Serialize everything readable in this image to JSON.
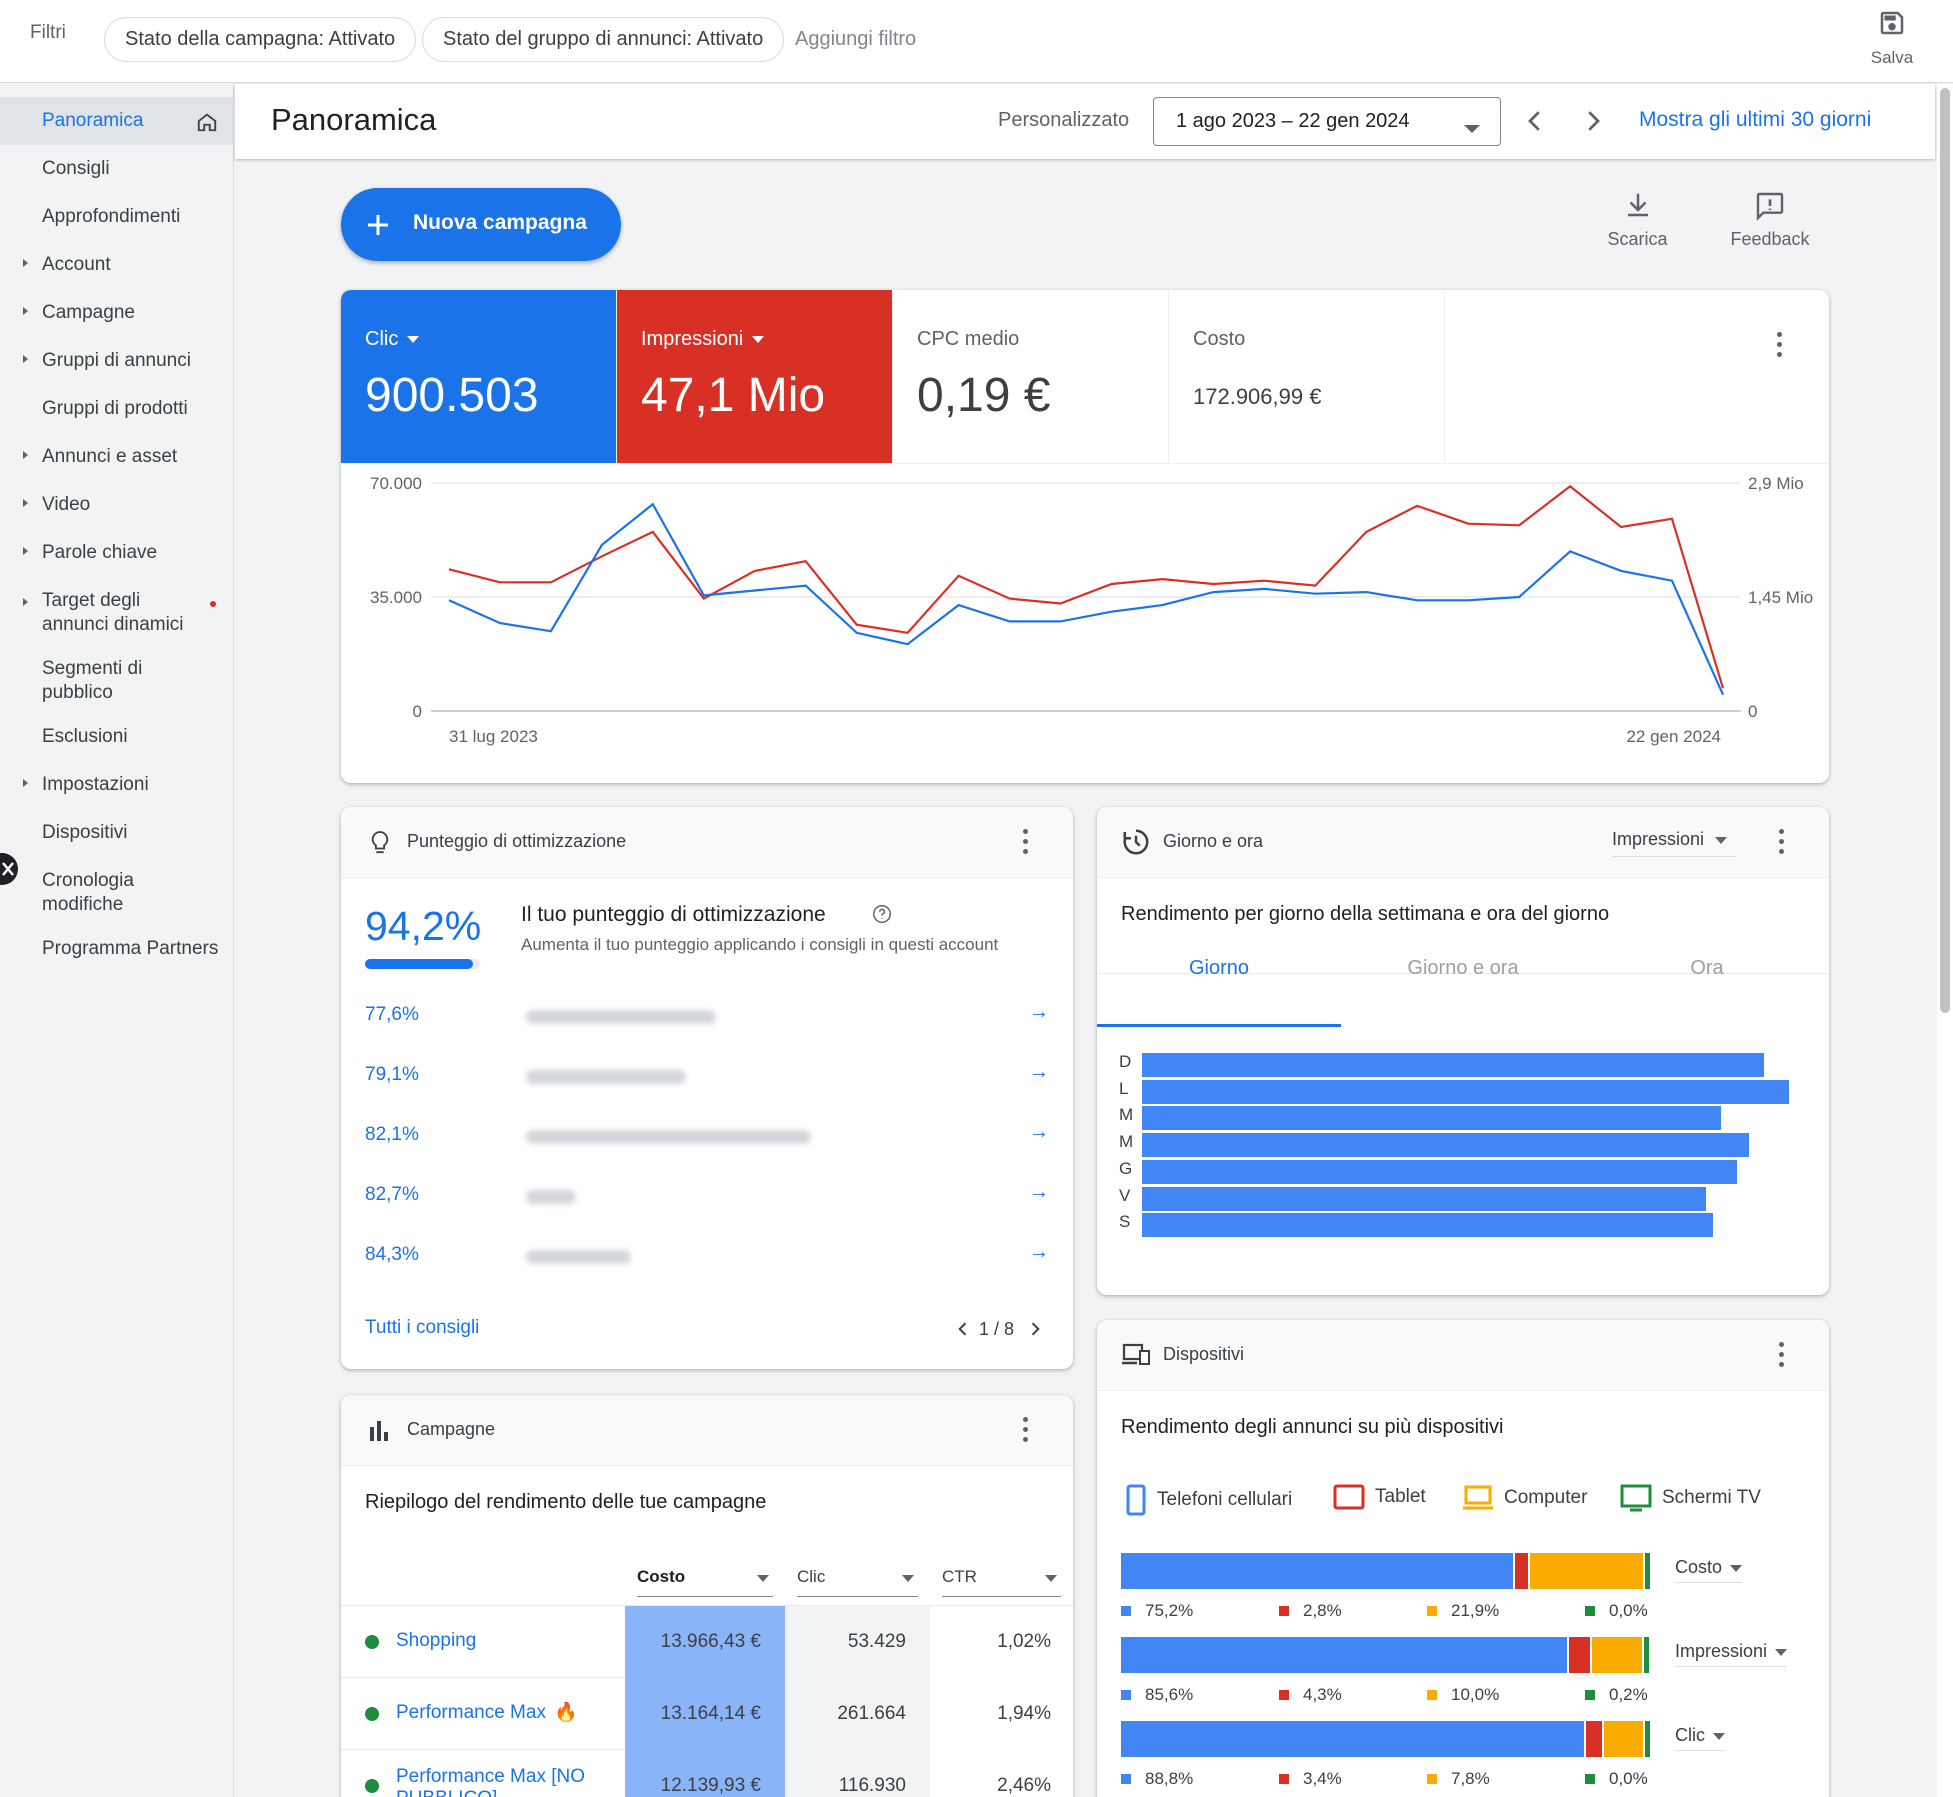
{
  "filters": {
    "label": "Filtri",
    "chips": [
      "Stato della campagna: Attivato",
      "Stato del gruppo di annunci: Attivato"
    ],
    "add": "Aggiungi filtro",
    "save": "Salva"
  },
  "sidebar": {
    "items": [
      {
        "label": "Panoramica",
        "caret": false,
        "active": true
      },
      {
        "label": "Consigli",
        "caret": false
      },
      {
        "label": "Approfondimenti",
        "caret": false
      },
      {
        "label": "Account",
        "caret": true
      },
      {
        "label": "Campagne",
        "caret": true
      },
      {
        "label": "Gruppi di annunci",
        "caret": true
      },
      {
        "label": "Gruppi di prodotti",
        "caret": false
      },
      {
        "label": "Annunci e asset",
        "caret": true
      },
      {
        "label": "Video",
        "caret": true
      },
      {
        "label": "Parole chiave",
        "caret": true
      },
      {
        "label": "Target degli annunci dinamici",
        "caret": true,
        "dot": true
      },
      {
        "label": "Segmenti di pubblico",
        "caret": false
      },
      {
        "label": "Esclusioni",
        "caret": false
      },
      {
        "label": "Impostazioni",
        "caret": true
      },
      {
        "label": "Dispositivi",
        "caret": false
      },
      {
        "label": "Cronologia modifiche",
        "caret": false
      },
      {
        "label": "Programma Partners",
        "caret": false
      }
    ]
  },
  "header": {
    "title": "Panoramica",
    "range_label": "Personalizzato",
    "date_range": "1 ago 2023 – 22 gen 2024",
    "last30": "Mostra gli ultimi 30 giorni"
  },
  "actions": {
    "new_campaign": "Nuova campagna",
    "download": "Scarica",
    "feedback": "Feedback"
  },
  "metrics": [
    {
      "label": "Clic",
      "value": "900.503",
      "color": "#1a73e8",
      "dropdown": true
    },
    {
      "label": "Impressioni",
      "value": "47,1 Mio",
      "color": "#d93025",
      "dropdown": true
    },
    {
      "label": "CPC medio",
      "value": "0,19 €"
    },
    {
      "label": "Costo",
      "value": "172.906,99 €"
    }
  ],
  "chart_data": {
    "type": "line",
    "x_start": "31 lug 2023",
    "x_end": "22 gen 2024",
    "y_left_ticks": [
      "70.000",
      "35.000",
      "0"
    ],
    "y_right_ticks": [
      "2,9 Mio",
      "1,45 Mio",
      "0"
    ],
    "ylim_left": [
      0,
      70000
    ],
    "ylim_right": [
      0,
      2900000
    ],
    "series": [
      {
        "name": "Clic",
        "color": "#1a73e8",
        "axis": "left",
        "values": [
          34000,
          27000,
          24500,
          51000,
          63500,
          35500,
          37000,
          38500,
          24000,
          20500,
          32500,
          27500,
          27500,
          30500,
          32500,
          36500,
          37500,
          36000,
          36500,
          34000,
          34000,
          35000,
          49000,
          43000,
          40000,
          5000
        ]
      },
      {
        "name": "Impressioni",
        "color": "#d93025",
        "axis": "left",
        "values": [
          43500,
          39500,
          39500,
          47500,
          55000,
          34500,
          43000,
          46000,
          26500,
          24000,
          41500,
          34500,
          33000,
          39000,
          40500,
          39000,
          40000,
          38500,
          55000,
          63000,
          57500,
          57000,
          69000,
          56500,
          59000,
          7000
        ]
      }
    ]
  },
  "optimization": {
    "title": "Punteggio di ottimizzazione",
    "score": "94,2%",
    "score_fraction": 0.942,
    "heading": "Il tuo punteggio di ottimizzazione",
    "desc": "Aumenta il tuo punteggio applicando i consigli in questi account",
    "rows": [
      "77,6%",
      "79,1%",
      "82,1%",
      "82,7%",
      "84,3%"
    ],
    "all_link": "Tutti i consigli",
    "page": "1 / 8"
  },
  "dayhour": {
    "title": "Giorno e ora",
    "metric": "Impressioni",
    "subtitle": "Rendimento per giorno della settimana e ora del giorno",
    "tabs": [
      "Giorno",
      "Giorno e ora",
      "Ora"
    ],
    "days": [
      "D",
      "L",
      "M",
      "M",
      "G",
      "V",
      "S"
    ],
    "day_values": [
      0.962,
      1.0,
      0.895,
      0.938,
      0.92,
      0.872,
      0.882
    ]
  },
  "campaigns": {
    "title": "Campagne",
    "subtitle": "Riepilogo del rendimento delle tue campagne",
    "columns": [
      "Costo",
      "Clic",
      "CTR"
    ],
    "rows": [
      {
        "name": "Shopping",
        "cost": "13.966,43 €",
        "clicks": "53.429",
        "ctr": "1,02%"
      },
      {
        "name": "Performance Max",
        "cost": "13.164,14 €",
        "clicks": "261.664",
        "ctr": "1,94%",
        "fire": true
      },
      {
        "name": "Performance Max [NO PUBBLICO]",
        "cost": "12.139,93 €",
        "clicks": "116.930",
        "ctr": "2,46%"
      }
    ]
  },
  "devices": {
    "title": "Dispositivi",
    "subtitle": "Rendimento degli annunci su più dispositivi",
    "legend": [
      "Telefoni cellulari",
      "Tablet",
      "Computer",
      "Schermi TV"
    ],
    "colors": [
      "#4285f4",
      "#d93025",
      "#f9ab00",
      "#1e8e3e"
    ],
    "bars": [
      {
        "metric": "Costo",
        "pcts": [
          "75,2%",
          "2,8%",
          "21,9%",
          "0,0%"
        ],
        "values": [
          75.2,
          2.8,
          21.9,
          0.0
        ]
      },
      {
        "metric": "Impressioni",
        "pcts": [
          "85,6%",
          "4,3%",
          "10,0%",
          "0,2%"
        ],
        "values": [
          85.6,
          4.3,
          10.0,
          0.2
        ]
      },
      {
        "metric": "Clic",
        "pcts": [
          "88,8%",
          "3,4%",
          "7,8%",
          "0,0%"
        ],
        "values": [
          88.8,
          3.4,
          7.8,
          0.0
        ]
      }
    ]
  }
}
